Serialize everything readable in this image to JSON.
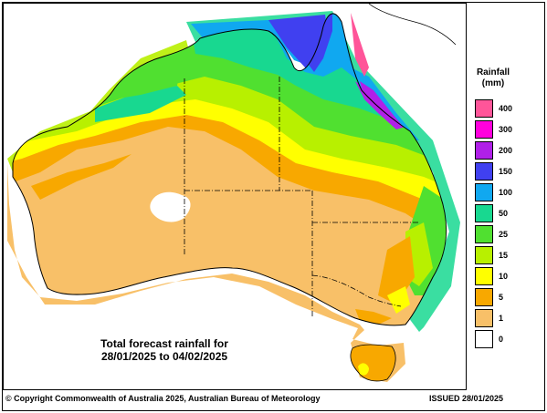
{
  "caption": {
    "line1": "Total forecast rainfall for",
    "line2": "28/01/2025 to 04/02/2025"
  },
  "legend": {
    "title_line1": "Rainfall",
    "title_line2": "(mm)",
    "items": [
      {
        "label": "400",
        "color": "#ff5599"
      },
      {
        "label": "300",
        "color": "#ff00dd"
      },
      {
        "label": "200",
        "color": "#b020e8"
      },
      {
        "label": "150",
        "color": "#4040f0"
      },
      {
        "label": "100",
        "color": "#10a8f0"
      },
      {
        "label": "50",
        "color": "#18d890"
      },
      {
        "label": "25",
        "color": "#50e030"
      },
      {
        "label": "15",
        "color": "#b8f000"
      },
      {
        "label": "10",
        "color": "#ffff00"
      },
      {
        "label": "5",
        "color": "#f8a800"
      },
      {
        "label": "1",
        "color": "#f8c068"
      },
      {
        "label": "0",
        "color": "#ffffff"
      }
    ]
  },
  "footer": {
    "copyright": "© Copyright Commonwealth of Australia 2025, Australian Bureau of Meteorology",
    "issued": "ISSUED 28/01/2025"
  }
}
